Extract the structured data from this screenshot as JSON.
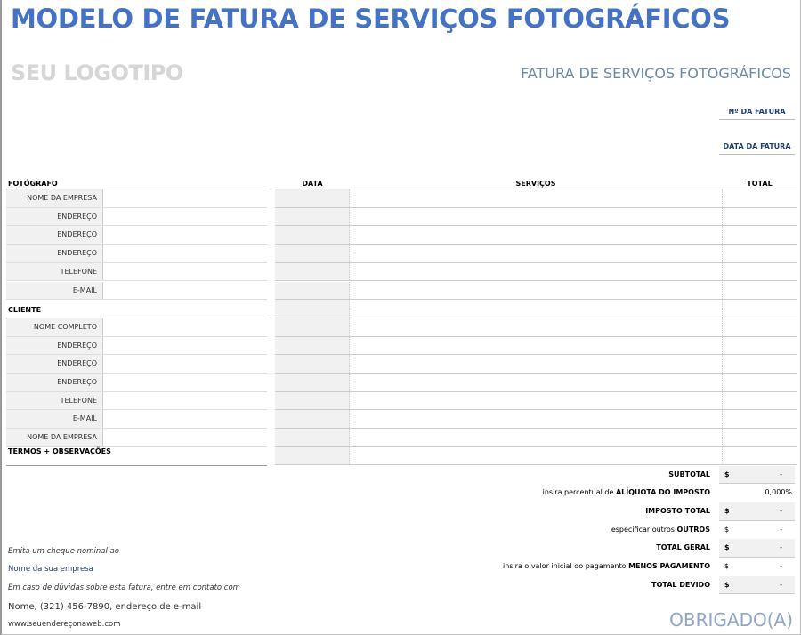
{
  "title": "MODELO DE FATURA DE SERVIÇOS FOTOGRÁFICOS",
  "logo": "SEU LOGOTIPO",
  "subtitle": "FATURA DE SERVIÇOS FOTOGRÁFICOS",
  "invoice_number_label": "Nº DA FATURA",
  "invoice_date_label": "DATA DA FATURA",
  "photographer": {
    "header": "FOTÓGRAFO",
    "fields": [
      "NOME DA EMPRESA",
      "ENDEREÇO",
      "ENDEREÇO",
      "ENDEREÇO",
      "TELEFONE",
      "E-MAIL"
    ]
  },
  "client": {
    "header": "CLIENTE",
    "fields": [
      "NOME COMPLETO",
      "ENDEREÇO",
      "ENDEREÇO",
      "ENDEREÇO",
      "TELEFONE",
      "E-MAIL",
      "NOME DA EMPRESA"
    ]
  },
  "terms_header": "TERMOS + OBSERVAÇÕES",
  "services_table": {
    "columns": [
      "DATA",
      "SERVIÇOS",
      "TOTAL"
    ],
    "row_count": 15
  },
  "summary": [
    {
      "label_pre": "",
      "label": "SUBTOTAL",
      "currency": "$",
      "value": "-",
      "shaded": true
    },
    {
      "label_pre": "insira percentual de ",
      "label": "ALÍQUOTA DO IMPOSTO",
      "currency": "",
      "value": "0,000%",
      "shaded": false
    },
    {
      "label_pre": "",
      "label": "IMPOSTO TOTAL",
      "currency": "$",
      "value": "-",
      "shaded": true
    },
    {
      "label_pre": "especificar outros ",
      "label": "OUTROS",
      "currency": "$",
      "value": "-",
      "shaded": false
    },
    {
      "label_pre": "",
      "label": "TOTAL GERAL",
      "currency": "$",
      "value": "-",
      "shaded": true
    },
    {
      "label_pre": "insira o valor inicial do pagamento ",
      "label": "MENOS PAGAMENTO",
      "currency": "$",
      "value": "-",
      "shaded": false
    },
    {
      "label_pre": "",
      "label": "TOTAL DEVIDO",
      "currency": "$",
      "value": "-",
      "shaded": true
    }
  ],
  "footer": {
    "cheque": "Emita um cheque nominal ao",
    "company": "Nome da sua empresa",
    "questions": "Em caso de dúvidas sobre esta fatura, entre em contato com",
    "contact": "Nome, (321) 456-7890, endereço de e-mail",
    "website": "www.seuendereçonaweb.com"
  },
  "thanks": "OBRIGADO(A)",
  "colors": {
    "title": "#4472c4",
    "shade": "#f1f1f1"
  }
}
